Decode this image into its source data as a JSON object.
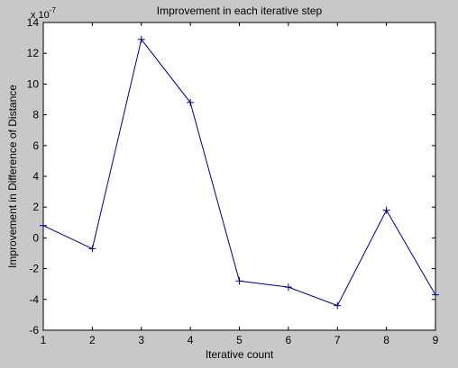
{
  "figure": {
    "background": "#c8c8c8",
    "axes_background": "#ffffff",
    "line_color": "#000080"
  },
  "chart_data": {
    "type": "line",
    "title": "Improvement in each iterative step",
    "xlabel": "Iterative count",
    "ylabel": "Improvement in Difference of Distance",
    "y_exponent_base": "x 10",
    "y_exponent_power": "-7",
    "xlim": [
      1,
      9
    ],
    "ylim": [
      -6,
      14
    ],
    "xticks": [
      1,
      2,
      3,
      4,
      5,
      6,
      7,
      8,
      9
    ],
    "yticks": [
      -6,
      -4,
      -2,
      0,
      2,
      4,
      6,
      8,
      10,
      12,
      14
    ],
    "grid": false,
    "marker": "+",
    "series": [
      {
        "x": [
          1,
          2,
          3,
          4,
          5,
          6,
          7,
          8,
          9
        ],
        "y": [
          0.8,
          -0.7,
          12.9,
          8.8,
          -2.8,
          -3.2,
          -4.4,
          1.8,
          -3.7
        ]
      }
    ]
  }
}
